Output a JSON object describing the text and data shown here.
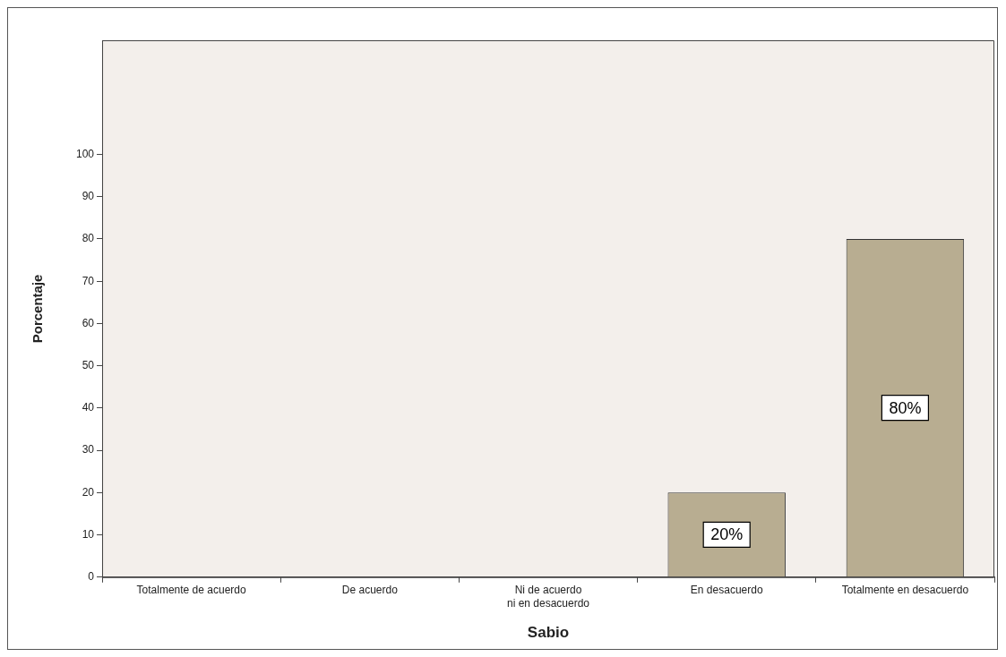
{
  "chart_data": {
    "type": "bar",
    "xlabel": "Sabio",
    "ylabel": "Porcentaje",
    "categories": [
      "Totalmente de acuerdo",
      "De acuerdo",
      "Ni de acuerdo\nni en desacuerdo",
      "En desacuerdo",
      "Totalmente en desacuerdo"
    ],
    "values": [
      0,
      0,
      0,
      20,
      80
    ],
    "value_labels": [
      null,
      null,
      null,
      "20%",
      "80%"
    ],
    "color": "#b8ad91",
    "ylim": [
      0,
      127
    ],
    "yticks": [
      0,
      10,
      20,
      30,
      40,
      50,
      60,
      70,
      80,
      90,
      100
    ],
    "grid": false,
    "legend": false
  }
}
